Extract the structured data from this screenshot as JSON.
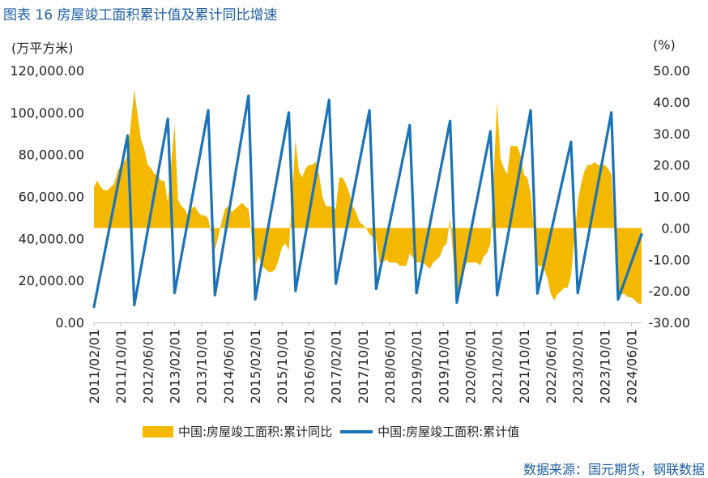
{
  "header": {
    "title": "图表 16  房屋竣工面积累计值及累计同比增速",
    "unit_left": "(万平方米)",
    "unit_right": "(%)",
    "source": "数据来源：国元期货，钢联数据"
  },
  "colors": {
    "area": "#f5b800",
    "line": "#1a72b8",
    "title": "#1f5fa8"
  },
  "chart_data": {
    "type": "line+area",
    "title": "房屋竣工面积累计值及累计同比增速",
    "left_axis": {
      "label": "(万平方米)",
      "range": [
        0,
        120000
      ],
      "ticks": [
        "0.00",
        "20,000.00",
        "40,000.00",
        "60,000.00",
        "80,000.00",
        "100,000.00",
        "120,000.00"
      ]
    },
    "right_axis": {
      "label": "(%)",
      "range": [
        -30,
        50
      ],
      "ticks": [
        "-30.00",
        "-20.00",
        "-10.00",
        "0.00",
        "10.00",
        "20.00",
        "30.00",
        "40.00",
        "50.00"
      ]
    },
    "x_ticks": [
      "2011/02/01",
      "2011/10/01",
      "2012/06/01",
      "2013/02/01",
      "2013/10/01",
      "2014/06/01",
      "2015/02/01",
      "2015/10/01",
      "2016/06/01",
      "2017/02/01",
      "2017/10/01",
      "2018/06/01",
      "2019/02/01",
      "2019/10/01",
      "2020/06/01",
      "2021/02/01",
      "2021/10/01",
      "2022/06/01",
      "2023/02/01",
      "2023/10/01",
      "2024/06/01"
    ],
    "legend": [
      "中国:房屋竣工面积:累计同比",
      "中国:房屋竣工面积:累计值"
    ],
    "series": [
      {
        "name": "中国:房屋竣工面积:累计值",
        "axis": "left",
        "style": "line",
        "points": [
          [
            "2011-02",
            7400
          ],
          [
            "2011-12",
            89000
          ],
          [
            "2012-02",
            8300
          ],
          [
            "2012-12",
            97000
          ],
          [
            "2013-02",
            14000
          ],
          [
            "2013-12",
            101000
          ],
          [
            "2014-02",
            13000
          ],
          [
            "2014-12",
            108000
          ],
          [
            "2015-02",
            11000
          ],
          [
            "2015-12",
            100000
          ],
          [
            "2016-02",
            15000
          ],
          [
            "2016-12",
            106000
          ],
          [
            "2017-02",
            18500
          ],
          [
            "2017-12",
            101000
          ],
          [
            "2018-02",
            16000
          ],
          [
            "2018-12",
            94000
          ],
          [
            "2019-02",
            14000
          ],
          [
            "2019-12",
            96000
          ],
          [
            "2020-02",
            9500
          ],
          [
            "2020-12",
            91000
          ],
          [
            "2021-02",
            13000
          ],
          [
            "2021-12",
            101000
          ],
          [
            "2022-02",
            13800
          ],
          [
            "2022-12",
            86000
          ],
          [
            "2023-02",
            14000
          ],
          [
            "2023-12",
            100000
          ],
          [
            "2024-02",
            11000
          ],
          [
            "2024-09",
            42000
          ]
        ]
      },
      {
        "name": "中国:房屋竣工面积:累计同比",
        "axis": "right",
        "style": "area",
        "points": [
          [
            "2011-02",
            13
          ],
          [
            "2011-03",
            15
          ],
          [
            "2011-04",
            13
          ],
          [
            "2011-05",
            12
          ],
          [
            "2011-06",
            12
          ],
          [
            "2011-07",
            13
          ],
          [
            "2011-08",
            14
          ],
          [
            "2011-09",
            18
          ],
          [
            "2011-10",
            20
          ],
          [
            "2011-11",
            21
          ],
          [
            "2011-12",
            23
          ],
          [
            "2012-02",
            44
          ],
          [
            "2012-03",
            36
          ],
          [
            "2012-04",
            28
          ],
          [
            "2012-05",
            25
          ],
          [
            "2012-06",
            20
          ],
          [
            "2012-07",
            19
          ],
          [
            "2012-08",
            17
          ],
          [
            "2012-09",
            17
          ],
          [
            "2012-10",
            15
          ],
          [
            "2012-11",
            15
          ],
          [
            "2012-12",
            8
          ],
          [
            "2013-02",
            33
          ],
          [
            "2013-03",
            9
          ],
          [
            "2013-04",
            7
          ],
          [
            "2013-05",
            6
          ],
          [
            "2013-06",
            4
          ],
          [
            "2013-07",
            6
          ],
          [
            "2013-08",
            7
          ],
          [
            "2013-09",
            5
          ],
          [
            "2013-10",
            4
          ],
          [
            "2013-11",
            4
          ],
          [
            "2013-12",
            3
          ],
          [
            "2014-02",
            -7
          ],
          [
            "2014-03",
            -3
          ],
          [
            "2014-04",
            2
          ],
          [
            "2014-05",
            6
          ],
          [
            "2014-06",
            7
          ],
          [
            "2014-07",
            5
          ],
          [
            "2014-08",
            6
          ],
          [
            "2014-09",
            7
          ],
          [
            "2014-10",
            8
          ],
          [
            "2014-11",
            7
          ],
          [
            "2014-12",
            6
          ],
          [
            "2015-02",
            -12
          ],
          [
            "2015-03",
            -9
          ],
          [
            "2015-04",
            -12
          ],
          [
            "2015-05",
            -13
          ],
          [
            "2015-06",
            -14
          ],
          [
            "2015-07",
            -14
          ],
          [
            "2015-08",
            -13
          ],
          [
            "2015-09",
            -10
          ],
          [
            "2015-10",
            -6
          ],
          [
            "2015-11",
            -5
          ],
          [
            "2015-12",
            -7
          ],
          [
            "2016-02",
            28
          ],
          [
            "2016-03",
            18
          ],
          [
            "2016-04",
            16
          ],
          [
            "2016-05",
            19
          ],
          [
            "2016-06",
            20
          ],
          [
            "2016-07",
            20
          ],
          [
            "2016-08",
            21
          ],
          [
            "2016-09",
            17
          ],
          [
            "2016-10",
            10
          ],
          [
            "2016-11",
            7
          ],
          [
            "2016-12",
            7
          ],
          [
            "2017-02",
            6
          ],
          [
            "2017-03",
            16
          ],
          [
            "2017-04",
            16
          ],
          [
            "2017-05",
            14
          ],
          [
            "2017-06",
            11
          ],
          [
            "2017-07",
            7
          ],
          [
            "2017-08",
            5
          ],
          [
            "2017-09",
            2
          ],
          [
            "2017-10",
            1
          ],
          [
            "2017-11",
            0
          ],
          [
            "2017-12",
            -2
          ],
          [
            "2018-02",
            -4
          ],
          [
            "2018-03",
            -11
          ],
          [
            "2018-04",
            -11
          ],
          [
            "2018-05",
            -10
          ],
          [
            "2018-06",
            -11
          ],
          [
            "2018-07",
            -11
          ],
          [
            "2018-08",
            -11
          ],
          [
            "2018-09",
            -12
          ],
          [
            "2018-10",
            -12
          ],
          [
            "2018-11",
            -12
          ],
          [
            "2018-12",
            -8
          ],
          [
            "2019-02",
            -11
          ],
          [
            "2019-03",
            -11
          ],
          [
            "2019-04",
            -11
          ],
          [
            "2019-05",
            -12
          ],
          [
            "2019-06",
            -13
          ],
          [
            "2019-07",
            -11
          ],
          [
            "2019-08",
            -10
          ],
          [
            "2019-09",
            -9
          ],
          [
            "2019-10",
            -6
          ],
          [
            "2019-11",
            -5
          ],
          [
            "2019-12",
            3
          ],
          [
            "2020-02",
            -23
          ],
          [
            "2020-03",
            -16
          ],
          [
            "2020-04",
            -14
          ],
          [
            "2020-05",
            -11
          ],
          [
            "2020-06",
            -11
          ],
          [
            "2020-07",
            -11
          ],
          [
            "2020-08",
            -11
          ],
          [
            "2020-09",
            -12
          ],
          [
            "2020-10",
            -9
          ],
          [
            "2020-11",
            -8
          ],
          [
            "2020-12",
            -5
          ],
          [
            "2021-02",
            40
          ],
          [
            "2021-03",
            22
          ],
          [
            "2021-04",
            19
          ],
          [
            "2021-05",
            17
          ],
          [
            "2021-06",
            26
          ],
          [
            "2021-07",
            26
          ],
          [
            "2021-08",
            26
          ],
          [
            "2021-09",
            23
          ],
          [
            "2021-10",
            17
          ],
          [
            "2021-11",
            16
          ],
          [
            "2021-12",
            11
          ],
          [
            "2022-02",
            -12
          ],
          [
            "2022-03",
            -12
          ],
          [
            "2022-04",
            -13
          ],
          [
            "2022-05",
            -16
          ],
          [
            "2022-06",
            -21
          ],
          [
            "2022-07",
            -23
          ],
          [
            "2022-08",
            -21
          ],
          [
            "2022-09",
            -20
          ],
          [
            "2022-10",
            -19
          ],
          [
            "2022-11",
            -19
          ],
          [
            "2022-12",
            -15
          ],
          [
            "2023-02",
            8
          ],
          [
            "2023-03",
            14
          ],
          [
            "2023-04",
            18
          ],
          [
            "2023-05",
            20
          ],
          [
            "2023-06",
            20
          ],
          [
            "2023-07",
            21
          ],
          [
            "2023-08",
            20
          ],
          [
            "2023-09",
            20
          ],
          [
            "2023-10",
            20
          ],
          [
            "2023-11",
            19
          ],
          [
            "2023-12",
            17
          ],
          [
            "2024-02",
            -20
          ],
          [
            "2024-03",
            -21
          ],
          [
            "2024-04",
            -21
          ],
          [
            "2024-05",
            -22
          ],
          [
            "2024-06",
            -22
          ],
          [
            "2024-07",
            -23
          ],
          [
            "2024-08",
            -24
          ],
          [
            "2024-09",
            -24
          ]
        ]
      }
    ]
  }
}
